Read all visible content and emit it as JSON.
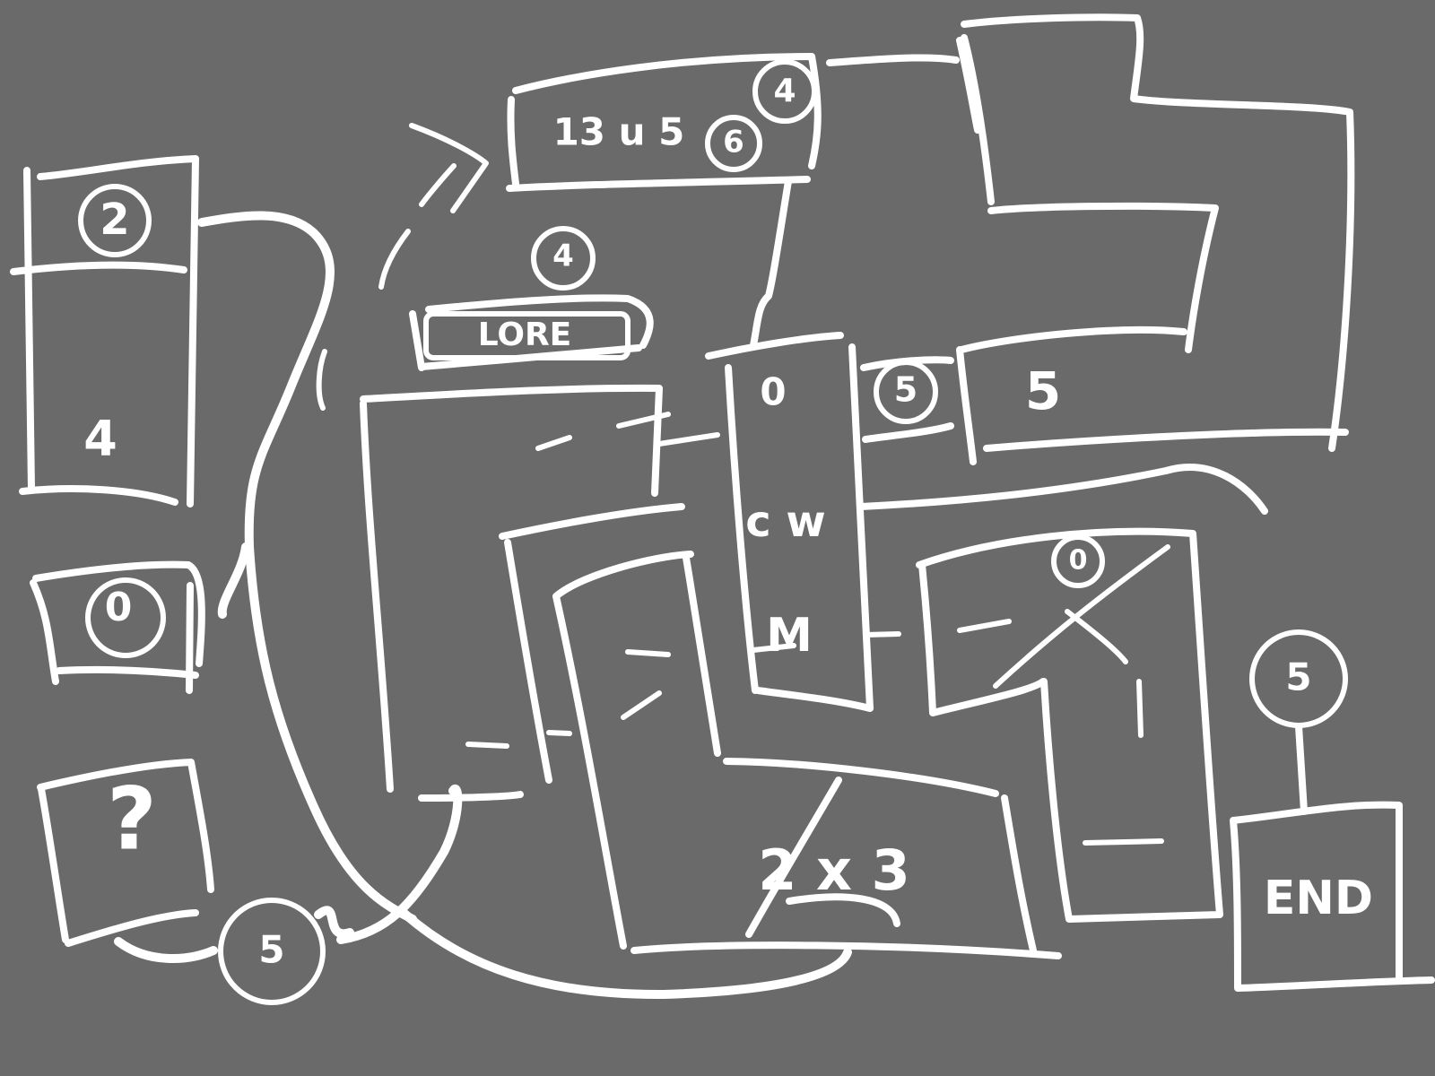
{
  "labels": {
    "ruins_room": "13 u 5",
    "ruins_marker_top": "4",
    "ruins_marker_side": "6",
    "below_ruins_marker": "4",
    "lore_room": "LORE",
    "left_top_marker": "2",
    "left_top_number": "4",
    "left_mid_marker": "0",
    "unknown_room": "?",
    "bottom_left_marker": "5",
    "corridor_top_marker": "0",
    "corridor_vertical_text": "c w",
    "corridor_small": "M",
    "right_marker_a": "5",
    "right_number": "5",
    "center_right_marker": "0",
    "bottom_center_numbers": "2 x 3",
    "end_marker": "5",
    "end_label": "END"
  },
  "colors": {
    "background": "#6a6a6a",
    "stroke": "#ffffff"
  }
}
